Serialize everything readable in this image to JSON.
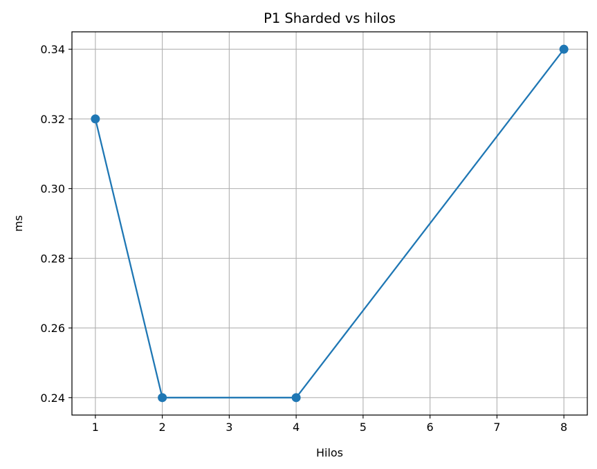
{
  "chart_data": {
    "type": "line",
    "title": "P1 Sharded vs hilos",
    "xlabel": "Hilos",
    "ylabel": "ms",
    "x": [
      1,
      2,
      4,
      8
    ],
    "series": [
      {
        "values": [
          0.32,
          0.24,
          0.24,
          0.34
        ],
        "color": "#1f77b4",
        "marker": "circle"
      }
    ],
    "xlim": [
      0.65,
      8.35
    ],
    "ylim": [
      0.235,
      0.345
    ],
    "xticks": [
      1,
      2,
      3,
      4,
      5,
      6,
      7,
      8
    ],
    "xtick_labels": [
      "1",
      "2",
      "3",
      "4",
      "5",
      "6",
      "7",
      "8"
    ],
    "yticks": [
      0.24,
      0.26,
      0.28,
      0.3,
      0.32,
      0.34
    ],
    "ytick_labels": [
      "0.24",
      "0.26",
      "0.28",
      "0.30",
      "0.32",
      "0.34"
    ],
    "grid": true,
    "legend": "none"
  }
}
